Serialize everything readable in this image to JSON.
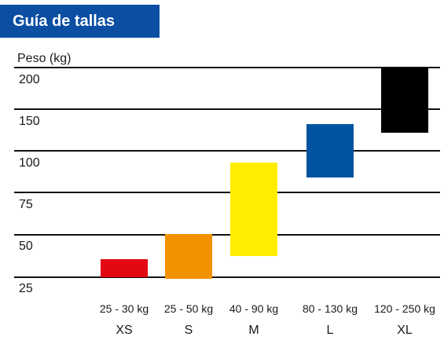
{
  "title": "Guía de tallas",
  "colors": {
    "banner": "#0b4ea2",
    "gridline": "#111111"
  },
  "chart_data": {
    "type": "bar",
    "title": "Guía de tallas",
    "ylabel": "Peso (kg)",
    "xlabel": "",
    "y_ticks": [
      "200",
      "150",
      "100",
      "75",
      "50",
      "25"
    ],
    "categories": [
      "XS",
      "S",
      "M",
      "L",
      "XL"
    ],
    "range_labels": [
      "25 - 30 kg",
      "25 - 50 kg",
      "40 - 90 kg",
      "80 - 130 kg",
      "120 - 250 kg"
    ],
    "bars": [
      {
        "size": "XS",
        "low": 25,
        "high": 30,
        "color": "#e30613"
      },
      {
        "size": "S",
        "low": 25,
        "high": 50,
        "color": "#f39200"
      },
      {
        "size": "M",
        "low": 40,
        "high": 90,
        "color": "#ffed00"
      },
      {
        "size": "L",
        "low": 80,
        "high": 130,
        "color": "#0053a0"
      },
      {
        "size": "XL",
        "low": 120,
        "high": 250,
        "color": "#000000"
      }
    ],
    "grid": true
  }
}
